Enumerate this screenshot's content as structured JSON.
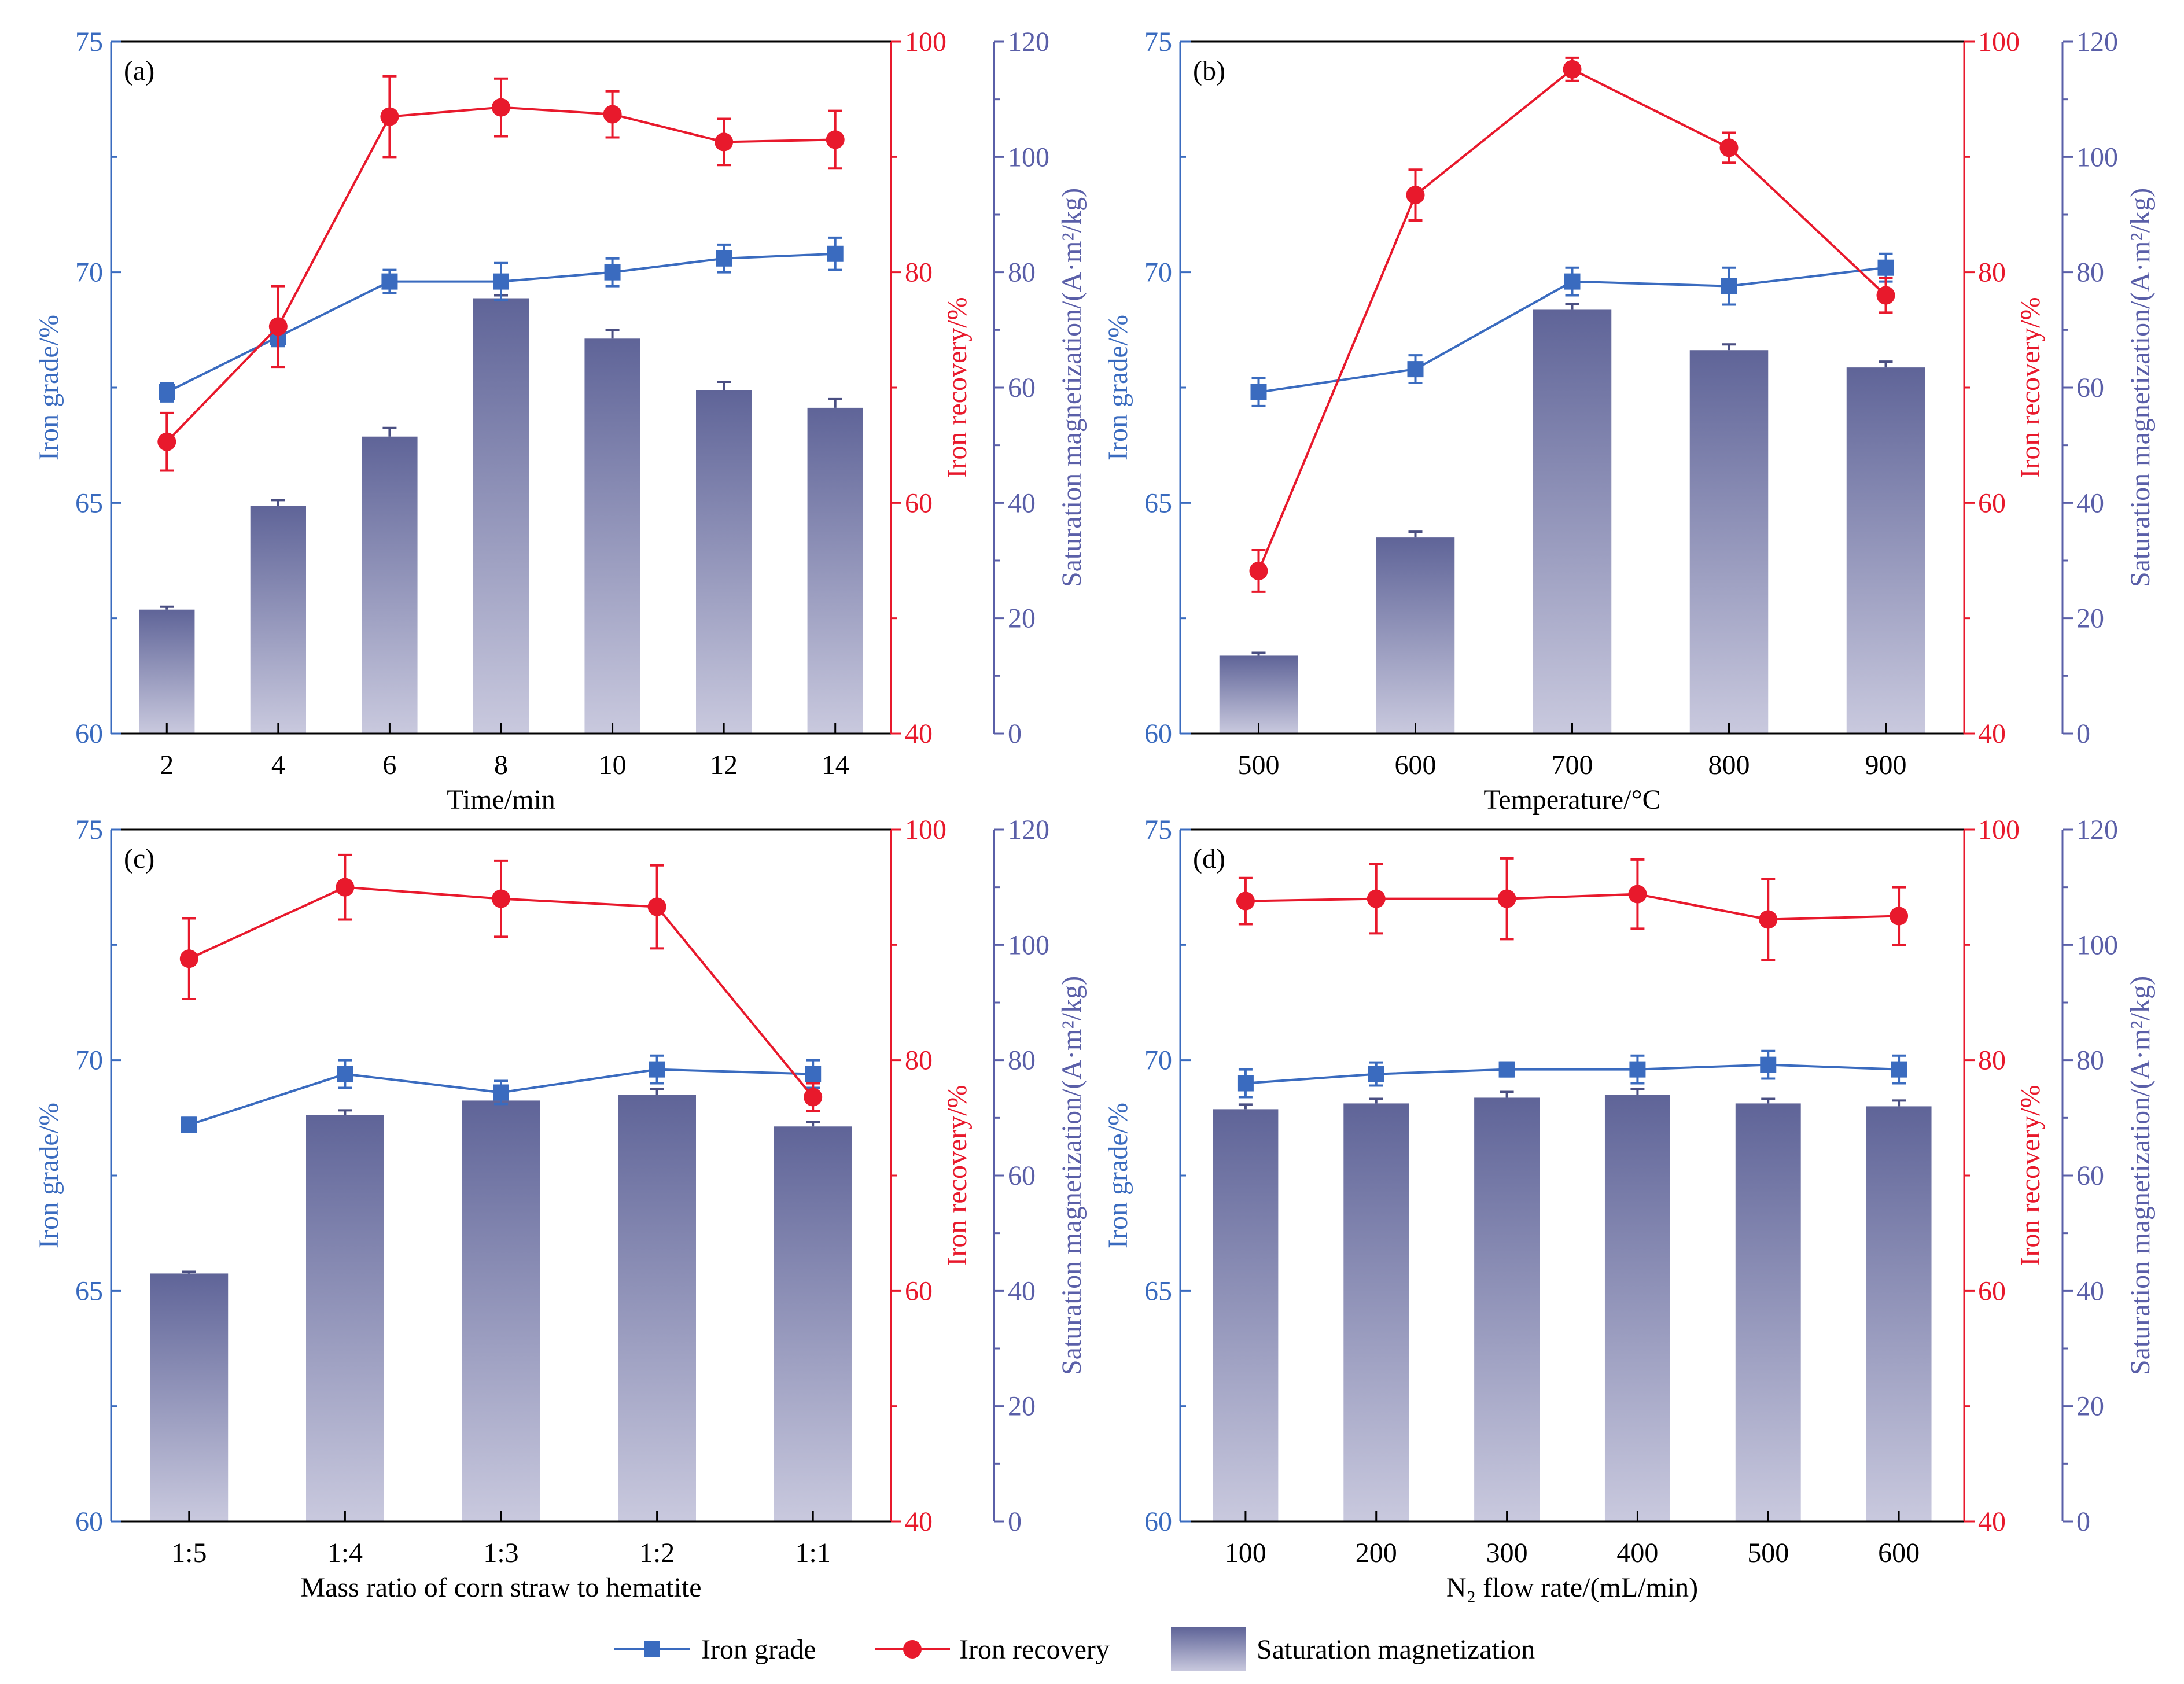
{
  "colors": {
    "grade": "#3a6bbf",
    "recovery": "#e8192c",
    "magnetization_axis": "#5a5fa8",
    "bar_top": "#5f6498",
    "bar_bottom": "#c9c9de",
    "text": "#000000"
  },
  "axis_labels": {
    "grade": "Iron grade/%",
    "recovery": "Iron recovery/%",
    "magnetization": "Saturation magnetization/(A·m²/kg)"
  },
  "legend": {
    "grade": "Iron grade",
    "recovery": "Iron recovery",
    "magnetization": "Saturation magnetization"
  },
  "chart_data": [
    {
      "type": "bar",
      "panel_label": "(a)",
      "xlabel": "Time/min",
      "categories": [
        "2",
        "4",
        "6",
        "8",
        "10",
        "12",
        "14"
      ],
      "ylim_grade": [
        60,
        75
      ],
      "yticks_grade": [
        60,
        65,
        70,
        75
      ],
      "ylim_recovery": [
        40,
        100
      ],
      "yticks_recovery": [
        40,
        60,
        80,
        100
      ],
      "ylim_magnetization": [
        0,
        120
      ],
      "yticks_magnetization": [
        0,
        20,
        40,
        60,
        80,
        100,
        120
      ],
      "series": [
        {
          "name": "Iron grade",
          "kind": "line",
          "axis": "grade",
          "values": [
            67.4,
            68.6,
            69.8,
            69.8,
            70.0,
            70.3,
            70.4
          ],
          "errors": [
            0.2,
            0.2,
            0.25,
            0.4,
            0.3,
            0.3,
            0.35
          ]
        },
        {
          "name": "Iron recovery",
          "kind": "line",
          "axis": "recovery",
          "values": [
            65.3,
            75.3,
            93.5,
            94.3,
            93.7,
            91.3,
            91.5
          ],
          "errors": [
            2.5,
            3.5,
            3.5,
            2.5,
            2.0,
            2.0,
            2.5
          ]
        },
        {
          "name": "Saturation magnetization",
          "kind": "bar",
          "axis": "magnetization",
          "values": [
            21.5,
            39.5,
            51.5,
            75.5,
            68.5,
            59.5,
            56.5
          ],
          "errors": [
            0.5,
            1.0,
            1.5,
            0.5,
            1.5,
            1.5,
            1.5
          ]
        }
      ]
    },
    {
      "type": "bar",
      "panel_label": "(b)",
      "xlabel": "Temperature/°C",
      "categories": [
        "500",
        "600",
        "700",
        "800",
        "900"
      ],
      "ylim_grade": [
        60,
        75
      ],
      "yticks_grade": [
        60,
        65,
        70,
        75
      ],
      "ylim_recovery": [
        40,
        100
      ],
      "yticks_recovery": [
        40,
        60,
        80,
        100
      ],
      "ylim_magnetization": [
        0,
        120
      ],
      "yticks_magnetization": [
        0,
        20,
        40,
        60,
        80,
        100,
        120
      ],
      "series": [
        {
          "name": "Iron grade",
          "kind": "line",
          "axis": "grade",
          "values": [
            67.4,
            67.9,
            69.8,
            69.7,
            70.1
          ],
          "errors": [
            0.3,
            0.3,
            0.3,
            0.4,
            0.3
          ]
        },
        {
          "name": "Iron recovery",
          "kind": "line",
          "axis": "recovery",
          "values": [
            54.1,
            86.7,
            97.6,
            90.8,
            78.0
          ],
          "errors": [
            1.8,
            2.2,
            1.0,
            1.3,
            1.5
          ]
        },
        {
          "name": "Saturation magnetization",
          "kind": "bar",
          "axis": "magnetization",
          "values": [
            13.5,
            34.0,
            73.5,
            66.5,
            63.5
          ],
          "errors": [
            0.5,
            1.0,
            1.0,
            1.0,
            1.0
          ]
        }
      ]
    },
    {
      "type": "bar",
      "panel_label": "(c)",
      "xlabel": "Mass ratio of corn straw to hematite",
      "categories": [
        "1:5",
        "1:4",
        "1:3",
        "1:2",
        "1:1"
      ],
      "ylim_grade": [
        60,
        75
      ],
      "yticks_grade": [
        60,
        65,
        70,
        75
      ],
      "ylim_recovery": [
        40,
        100
      ],
      "yticks_recovery": [
        40,
        60,
        80,
        100
      ],
      "ylim_magnetization": [
        0,
        120
      ],
      "yticks_magnetization": [
        0,
        20,
        40,
        60,
        80,
        100,
        120
      ],
      "series": [
        {
          "name": "Iron grade",
          "kind": "line",
          "axis": "grade",
          "values": [
            68.6,
            69.7,
            69.3,
            69.8,
            69.7
          ],
          "errors": [
            0.15,
            0.3,
            0.25,
            0.3,
            0.3
          ]
        },
        {
          "name": "Iron recovery",
          "kind": "line",
          "axis": "recovery",
          "values": [
            88.8,
            95.0,
            94.0,
            93.3,
            76.8
          ],
          "errors": [
            3.5,
            2.8,
            3.3,
            3.6,
            1.2
          ]
        },
        {
          "name": "Saturation magnetization",
          "kind": "bar",
          "axis": "magnetization",
          "values": [
            43.0,
            70.5,
            73.0,
            74.0,
            68.5
          ],
          "errors": [
            0.3,
            0.8,
            0.8,
            1.0,
            0.8
          ]
        }
      ]
    },
    {
      "type": "bar",
      "panel_label": "(d)",
      "xlabel": "N₂ flow rate/(mL/min)",
      "categories": [
        "100",
        "200",
        "300",
        "400",
        "500",
        "600"
      ],
      "ylim_grade": [
        60,
        75
      ],
      "yticks_grade": [
        60,
        65,
        70,
        75
      ],
      "ylim_recovery": [
        40,
        100
      ],
      "yticks_recovery": [
        40,
        60,
        80,
        100
      ],
      "ylim_magnetization": [
        0,
        120
      ],
      "yticks_magnetization": [
        0,
        20,
        40,
        60,
        80,
        100,
        120
      ],
      "series": [
        {
          "name": "Iron grade",
          "kind": "line",
          "axis": "grade",
          "values": [
            69.5,
            69.7,
            69.8,
            69.8,
            69.9,
            69.8
          ],
          "errors": [
            0.3,
            0.25,
            0.15,
            0.3,
            0.3,
            0.3
          ]
        },
        {
          "name": "Iron recovery",
          "kind": "line",
          "axis": "recovery",
          "values": [
            93.8,
            94.0,
            94.0,
            94.4,
            92.2,
            92.5
          ],
          "errors": [
            2.0,
            3.0,
            3.5,
            3.0,
            3.5,
            2.5
          ]
        },
        {
          "name": "Saturation magnetization",
          "kind": "bar",
          "axis": "magnetization",
          "values": [
            71.5,
            72.5,
            73.5,
            74.0,
            72.5,
            72.0
          ],
          "errors": [
            0.8,
            0.8,
            1.0,
            1.0,
            0.8,
            1.0
          ]
        }
      ]
    }
  ]
}
